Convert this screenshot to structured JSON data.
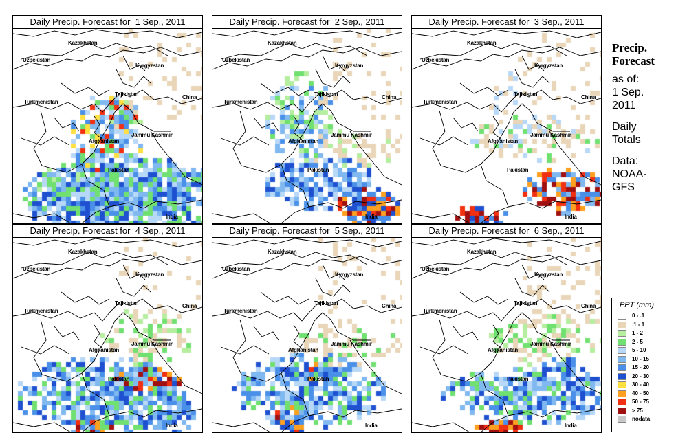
{
  "panels": [
    {
      "title": "Daily Precip. Forecast for  1 Sep., 2011",
      "seed": 11,
      "day": 1
    },
    {
      "title": "Daily Precip. Forecast for  2 Sep., 2011",
      "seed": 23,
      "day": 2
    },
    {
      "title": "Daily Precip. Forecast for  3 Sep., 2011",
      "seed": 37,
      "day": 3
    },
    {
      "title": "Daily Precip. Forecast for  4 Sep., 2011",
      "seed": 41,
      "day": 4
    },
    {
      "title": "Daily Precip. Forecast for  5 Sep., 2011",
      "seed": 53,
      "day": 5
    },
    {
      "title": "Daily Precip. Forecast for  6 Sep., 2011",
      "seed": 67,
      "day": 6
    }
  ],
  "map_labels": {
    "kazakhstan": "Kazakhstan",
    "uzbekistan": "Uzbekistan",
    "kyrgyzstan": "Kyrgyzstan",
    "tajikistan": "Tajikistan",
    "turkmenistan": "Turkmenistan",
    "china": "China",
    "jammu_kashmir": "Jammu Kashmir",
    "afghanistan": "Afghanistan",
    "pakistan": "Pakistan",
    "india": "India"
  },
  "side": {
    "title_line1": "Precip.",
    "title_line2": "Forecast",
    "asof": "as of:",
    "date1": "1 Sep.",
    "date2": "2011",
    "totals1": "Daily",
    "totals2": "Totals",
    "data1": "Data:",
    "data2": "NOAA-",
    "data3": "GFS"
  },
  "legend": {
    "title": "PPT (mm)",
    "items": [
      {
        "label": "0 - .1",
        "color": "#ffffff"
      },
      {
        "label": ".1 - 1",
        "color": "#e9d6b8"
      },
      {
        "label": "1 - 2",
        "color": "#b4ee9e"
      },
      {
        "label": "2 - 5",
        "color": "#70e070"
      },
      {
        "label": "5 - 10",
        "color": "#b8d8f8"
      },
      {
        "label": "10 - 15",
        "color": "#80b8f0"
      },
      {
        "label": "15 - 20",
        "color": "#4a90e8"
      },
      {
        "label": "20 - 30",
        "color": "#1e50d0"
      },
      {
        "label": "30 - 40",
        "color": "#ffe040"
      },
      {
        "label": "40 - 50",
        "color": "#ffa020"
      },
      {
        "label": "50 - 75",
        "color": "#f03010"
      },
      {
        "label": "> 75",
        "color": "#a01010"
      },
      {
        "label": "nodata",
        "color": "#c8c8c8"
      }
    ]
  }
}
